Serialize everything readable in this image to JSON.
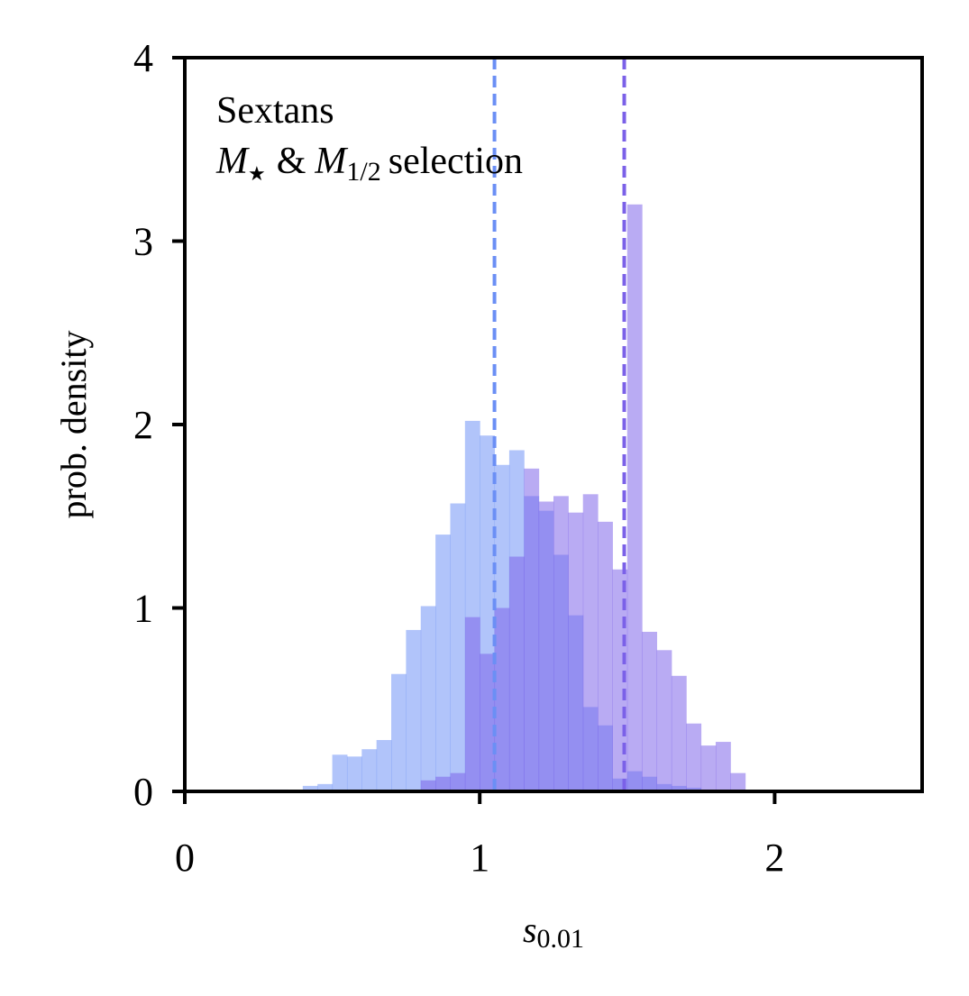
{
  "chart_data": {
    "type": "histogram",
    "annotation": {
      "line1": "Sextans",
      "line2_M": "M",
      "line2_star": "★",
      "line2_amp": "&",
      "line2_M2": "M",
      "line2_sub": "1/2",
      "line2_rest": "selection"
    },
    "xlabel": {
      "main": "s",
      "sub": "0.01"
    },
    "ylabel": "prob. density",
    "xlim": [
      0,
      2.5
    ],
    "ylim": [
      0,
      4
    ],
    "xticks": [
      0,
      1,
      2
    ],
    "xtick_labels": [
      "0",
      "1",
      "2"
    ],
    "yticks": [
      0,
      1,
      2,
      3,
      4
    ],
    "ytick_labels": [
      "0",
      "1",
      "2",
      "3",
      "4"
    ],
    "grid": false,
    "series": [
      {
        "color": "#6b8ff5",
        "alpha": 0.53,
        "bins": [
          {
            "x0": 0.25,
            "x1": 0.3,
            "y": 0.01
          },
          {
            "x0": 0.3,
            "x1": 0.35,
            "y": 0.01
          },
          {
            "x0": 0.4,
            "x1": 0.45,
            "y": 0.03
          },
          {
            "x0": 0.45,
            "x1": 0.5,
            "y": 0.04
          },
          {
            "x0": 0.5,
            "x1": 0.55,
            "y": 0.2
          },
          {
            "x0": 0.55,
            "x1": 0.6,
            "y": 0.19
          },
          {
            "x0": 0.6,
            "x1": 0.65,
            "y": 0.23
          },
          {
            "x0": 0.65,
            "x1": 0.7,
            "y": 0.28
          },
          {
            "x0": 0.7,
            "x1": 0.75,
            "y": 0.64
          },
          {
            "x0": 0.75,
            "x1": 0.8,
            "y": 0.88
          },
          {
            "x0": 0.8,
            "x1": 0.85,
            "y": 1.01
          },
          {
            "x0": 0.85,
            "x1": 0.9,
            "y": 1.4
          },
          {
            "x0": 0.9,
            "x1": 0.95,
            "y": 1.57
          },
          {
            "x0": 0.95,
            "x1": 1.0,
            "y": 2.02
          },
          {
            "x0": 1.0,
            "x1": 1.05,
            "y": 1.94
          },
          {
            "x0": 1.05,
            "x1": 1.1,
            "y": 1.78
          },
          {
            "x0": 1.1,
            "x1": 1.15,
            "y": 1.86
          },
          {
            "x0": 1.15,
            "x1": 1.2,
            "y": 1.61
          },
          {
            "x0": 1.2,
            "x1": 1.25,
            "y": 1.53
          },
          {
            "x0": 1.25,
            "x1": 1.3,
            "y": 1.29
          },
          {
            "x0": 1.3,
            "x1": 1.35,
            "y": 0.96
          },
          {
            "x0": 1.35,
            "x1": 1.4,
            "y": 0.46
          },
          {
            "x0": 1.4,
            "x1": 1.45,
            "y": 0.36
          },
          {
            "x0": 1.45,
            "x1": 1.5,
            "y": 0.07
          },
          {
            "x0": 1.5,
            "x1": 1.55,
            "y": 0.11
          },
          {
            "x0": 1.55,
            "x1": 1.6,
            "y": 0.08
          },
          {
            "x0": 1.6,
            "x1": 1.65,
            "y": 0.04
          },
          {
            "x0": 1.65,
            "x1": 1.7,
            "y": 0.03
          },
          {
            "x0": 1.7,
            "x1": 1.75,
            "y": 0.02
          }
        ]
      },
      {
        "color": "#7b61e8",
        "alpha": 0.53,
        "bins": [
          {
            "x0": 0.8,
            "x1": 0.85,
            "y": 0.06
          },
          {
            "x0": 0.85,
            "x1": 0.9,
            "y": 0.08
          },
          {
            "x0": 0.9,
            "x1": 0.95,
            "y": 0.1
          },
          {
            "x0": 0.95,
            "x1": 1.0,
            "y": 0.95
          },
          {
            "x0": 1.0,
            "x1": 1.05,
            "y": 0.75
          },
          {
            "x0": 1.05,
            "x1": 1.1,
            "y": 1.0
          },
          {
            "x0": 1.1,
            "x1": 1.15,
            "y": 1.28
          },
          {
            "x0": 1.15,
            "x1": 1.2,
            "y": 1.76
          },
          {
            "x0": 1.2,
            "x1": 1.25,
            "y": 1.58
          },
          {
            "x0": 1.25,
            "x1": 1.3,
            "y": 1.61
          },
          {
            "x0": 1.3,
            "x1": 1.35,
            "y": 1.52
          },
          {
            "x0": 1.35,
            "x1": 1.4,
            "y": 1.62
          },
          {
            "x0": 1.4,
            "x1": 1.45,
            "y": 1.47
          },
          {
            "x0": 1.45,
            "x1": 1.5,
            "y": 1.21
          },
          {
            "x0": 1.5,
            "x1": 1.55,
            "y": 3.2
          },
          {
            "x0": 1.55,
            "x1": 1.6,
            "y": 0.87
          },
          {
            "x0": 1.6,
            "x1": 1.65,
            "y": 0.77
          },
          {
            "x0": 1.65,
            "x1": 1.7,
            "y": 0.63
          },
          {
            "x0": 1.7,
            "x1": 1.75,
            "y": 0.37
          },
          {
            "x0": 1.75,
            "x1": 1.8,
            "y": 0.25
          },
          {
            "x0": 1.8,
            "x1": 1.85,
            "y": 0.27
          },
          {
            "x0": 1.85,
            "x1": 1.9,
            "y": 0.1
          }
        ]
      }
    ],
    "vlines": [
      {
        "x": 1.05,
        "color": "#6b8ff5",
        "style": "dashed"
      },
      {
        "x": 1.49,
        "color": "#7b61e8",
        "style": "dashed"
      }
    ]
  }
}
